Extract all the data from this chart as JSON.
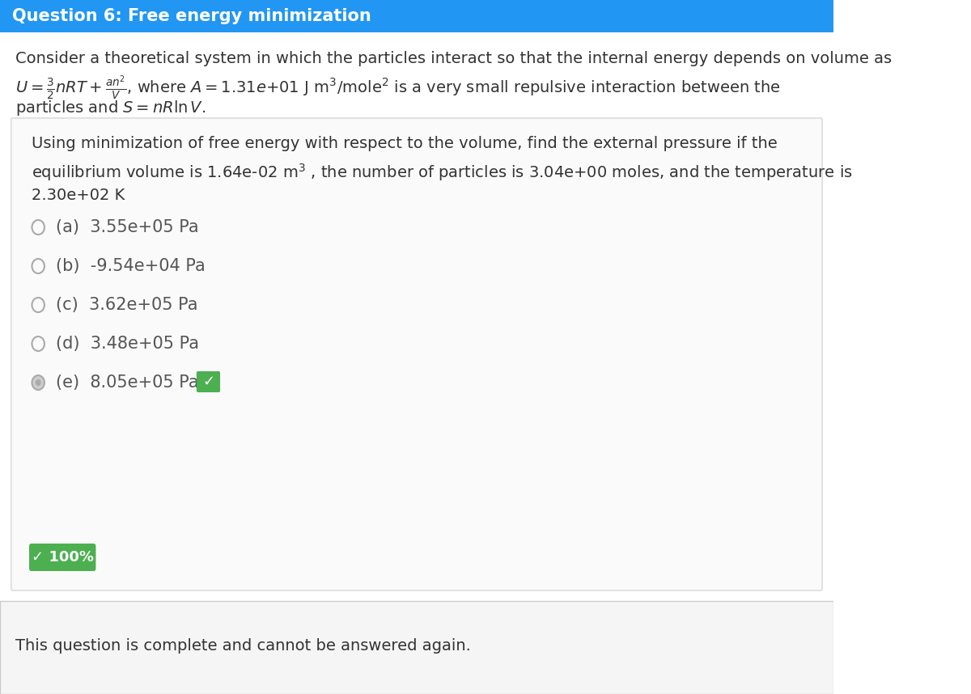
{
  "title": "Question 6: Free energy minimization",
  "title_bg_color": "#2196F3",
  "title_text_color": "#FFFFFF",
  "body_bg_color": "#FFFFFF",
  "footer_bg_color": "#F5F5F5",
  "panel_bg_color": "#FAFAFA",
  "panel_border_color": "#DDDDDD",
  "text_color": "#333333",
  "option_text_color": "#555555",
  "correct_color": "#4CAF50",
  "radio_color": "#AAAAAA",
  "radio_selected_color": "#AAAAAA",
  "line1": "Consider a theoretical system in which the particles interact so that the internal energy depends on volume as",
  "line2_math": "U = (3/2)nRT + an²/V, where A = 1.31e+01 J m³/mole² is a very small repulsive interaction between the",
  "line3": "particles and S = nR ln V.",
  "subquestion": "Using minimization of free energy with respect to the volume, find the external pressure if the\nequilibrium volume is 1.64e-02 m³ , the number of particles is 3.04e+00 moles, and the temperature is\n2.30e+02 K",
  "options": [
    "(a)  3.55e+05 Pa",
    "(b)  -9.54e+04 Pa",
    "(c)  3.62e+05 Pa",
    "(d)  3.48e+05 Pa",
    "(e)  8.05e+05 Pa"
  ],
  "correct_index": 4,
  "footer_text": "This question is complete and cannot be answered again.",
  "score_text": "✓ 100%"
}
